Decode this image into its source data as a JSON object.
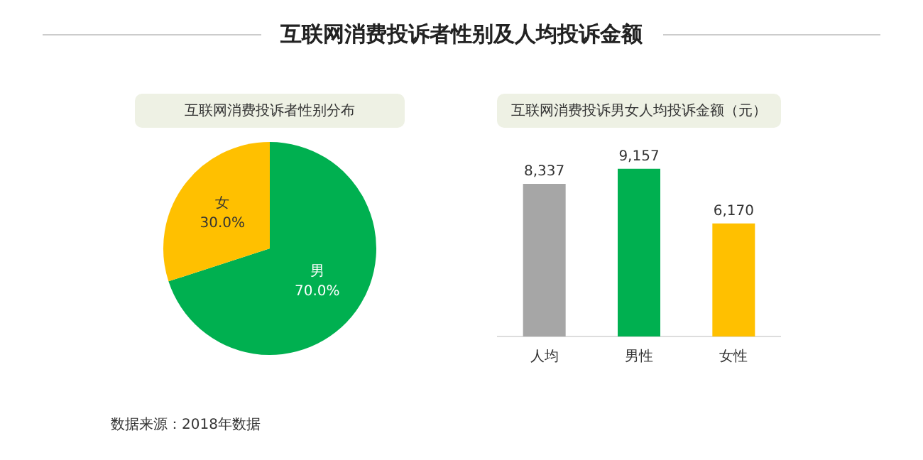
{
  "chart_data": [
    {
      "type": "pie",
      "title": "互联网消费投诉者性别分布",
      "categories": [
        "男",
        "女"
      ],
      "values": [
        70.0,
        30.0
      ],
      "colors": [
        "#00b050",
        "#ffc000"
      ],
      "value_labels": [
        "70.0%",
        "30.0%"
      ],
      "legend": false,
      "annotations": [
        "互联网消费投诉者性别及人均投诉金额",
        "数据来源：2018年数据"
      ]
    },
    {
      "type": "bar",
      "title": "互联网消费投诉男女人均投诉金额（元）",
      "categories": [
        "人均",
        "男性",
        "女性"
      ],
      "values": [
        8337,
        9157,
        6170
      ],
      "colors": [
        "#a6a6a6",
        "#00b050",
        "#ffc000"
      ],
      "value_labels": [
        "8,337",
        "9,157",
        "6,170"
      ],
      "legend": false,
      "grid": false
    }
  ]
}
